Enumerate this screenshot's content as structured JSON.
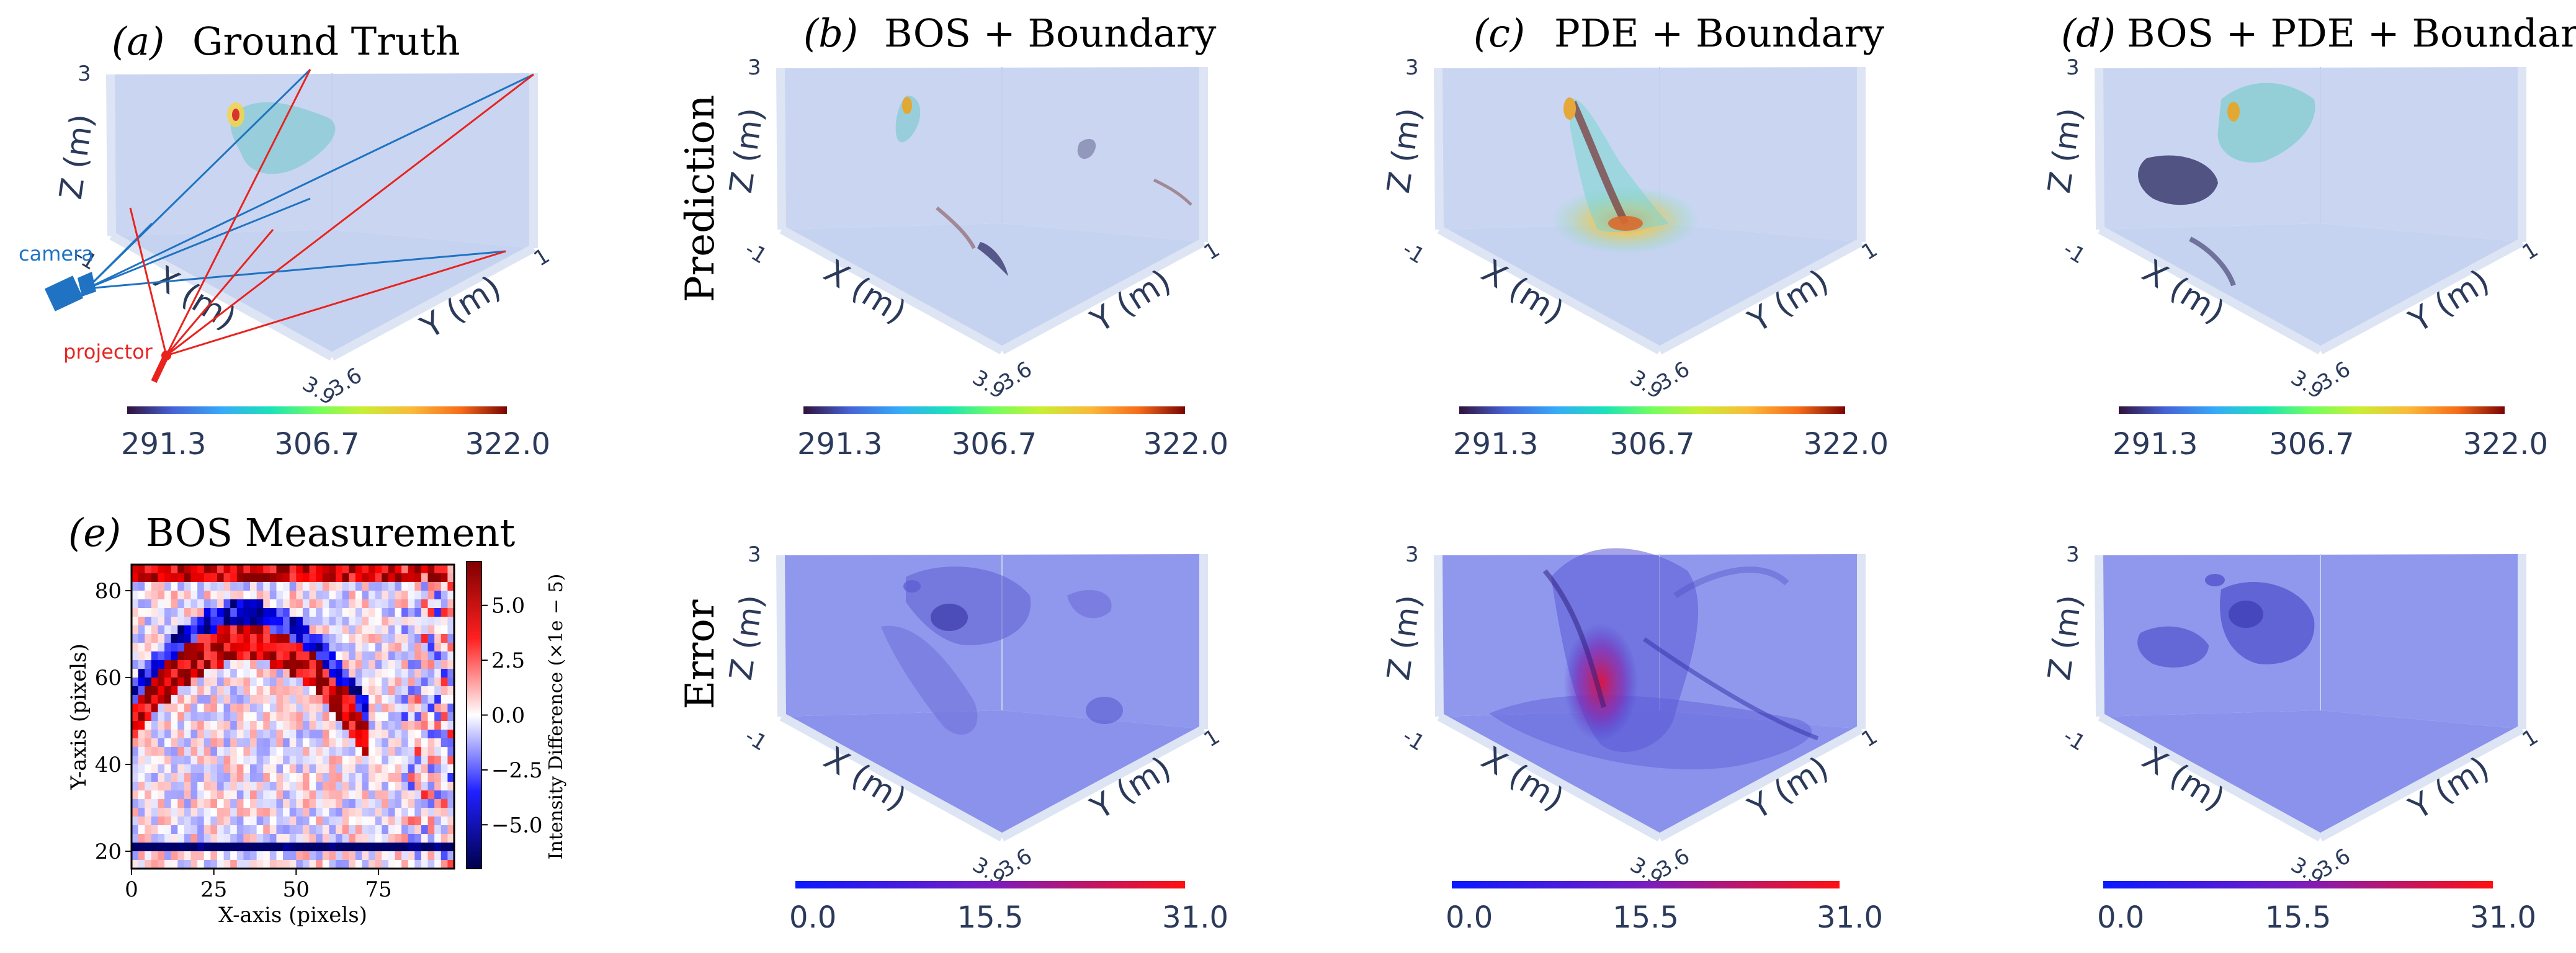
{
  "panels": [
    {
      "id": "a",
      "tag": "(a)",
      "title": "Ground Truth"
    },
    {
      "id": "b",
      "tag": "(b)",
      "title": "BOS + Boundary"
    },
    {
      "id": "c",
      "tag": "(c)",
      "title": "PDE + Boundary"
    },
    {
      "id": "d",
      "tag": "(d)",
      "title": "BOS + PDE + Boundary"
    },
    {
      "id": "e",
      "tag": "(e)",
      "title": "BOS Measurement"
    }
  ],
  "row_labels": {
    "prediction": "Prediction",
    "error": "Error"
  },
  "axes3d": {
    "z_label": "Z (m)",
    "x_label": "X (m)",
    "y_label": "Y (m)",
    "z_tick": "3",
    "x_tick": "-1",
    "y_tick": "1",
    "corner_x": "3.9",
    "corner_y": "3.6"
  },
  "apparatus": {
    "camera": "camera",
    "projector": "projector"
  },
  "colorbars": {
    "temperature": {
      "min": "291.3",
      "mid": "306.7",
      "max": "322.0"
    },
    "error": {
      "min": "0.0",
      "mid": "15.5",
      "max": "31.0"
    }
  },
  "colors": {
    "volume_fill": "#b8c8ec",
    "error_fill": "#7d86ea",
    "axis_text": "#2b3a5a",
    "camera_blue": "#1f73c2",
    "projector_red": "#e8231e"
  },
  "chart_data": {
    "type": "heatmap",
    "title": "BOS Measurement",
    "xlabel": "X-axis (pixels)",
    "ylabel": "Y-axis (pixels)",
    "x_ticks": [
      "0",
      "25",
      "50",
      "75"
    ],
    "y_ticks": [
      "20",
      "40",
      "60",
      "80"
    ],
    "xlim": [
      0,
      98
    ],
    "ylim": [
      16,
      86
    ],
    "colorbar_label": "Intensity Difference (×1e − 5)",
    "colorbar_ticks": [
      "5.0",
      "2.5",
      "0.0",
      "−2.5",
      "−5.0"
    ],
    "colorbar_range": [
      -7,
      7
    ],
    "colormap": "seismic"
  }
}
